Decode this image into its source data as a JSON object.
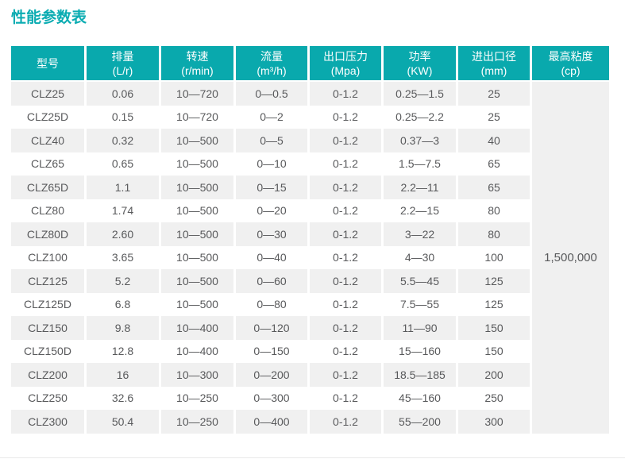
{
  "page": {
    "title": "性能参数表"
  },
  "colors": {
    "accent_teal": "#09a9ad",
    "title_teal": "#0bacb2",
    "row_stripe": "#f0f0f0",
    "merged_cell_bg": "#efefef",
    "cell_text": "#58595b",
    "header_text": "#ffffff"
  },
  "table": {
    "columns": [
      {
        "label": "型号",
        "unit": ""
      },
      {
        "label": "排量",
        "unit": "(L/r)"
      },
      {
        "label": "转速",
        "unit": "(r/min)"
      },
      {
        "label": "流量",
        "unit": "(m³/h)"
      },
      {
        "label": "出口压力",
        "unit": "(Mpa)"
      },
      {
        "label": "功率",
        "unit": "(KW)"
      },
      {
        "label": "进出口径",
        "unit": "(mm)"
      },
      {
        "label": "最高粘度",
        "unit": "(cp)"
      }
    ],
    "rows": [
      [
        "CLZ25",
        "0.06",
        "10—720",
        "0—0.5",
        "0-1.2",
        "0.25—1.5",
        "25"
      ],
      [
        "CLZ25D",
        "0.15",
        "10—720",
        "0—2",
        "0-1.2",
        "0.25—2.2",
        "25"
      ],
      [
        "CLZ40",
        "0.32",
        "10—500",
        "0—5",
        "0-1.2",
        "0.37—3",
        "40"
      ],
      [
        "CLZ65",
        "0.65",
        "10—500",
        "0—10",
        "0-1.2",
        "1.5—7.5",
        "65"
      ],
      [
        "CLZ65D",
        "1.1",
        "10—500",
        "0—15",
        "0-1.2",
        "2.2—11",
        "65"
      ],
      [
        "CLZ80",
        "1.74",
        "10—500",
        "0—20",
        "0-1.2",
        "2.2—15",
        "80"
      ],
      [
        "CLZ80D",
        "2.60",
        "10—500",
        "0—30",
        "0-1.2",
        "3—22",
        "80"
      ],
      [
        "CLZ100",
        "3.65",
        "10—500",
        "0—40",
        "0-1.2",
        "4—30",
        "100"
      ],
      [
        "CLZ125",
        "5.2",
        "10—500",
        "0—60",
        "0-1.2",
        "5.5—45",
        "125"
      ],
      [
        "CLZ125D",
        "6.8",
        "10—500",
        "0—80",
        "0-1.2",
        "7.5—55",
        "125"
      ],
      [
        "CLZ150",
        "9.8",
        "10—400",
        "0—120",
        "0-1.2",
        "11—90",
        "150"
      ],
      [
        "CLZ150D",
        "12.8",
        "10—400",
        "0—150",
        "0-1.2",
        "15—160",
        "150"
      ],
      [
        "CLZ200",
        "16",
        "10—300",
        "0—200",
        "0-1.2",
        "18.5—185",
        "200"
      ],
      [
        "CLZ250",
        "32.6",
        "10—250",
        "0—300",
        "0-1.2",
        "45—160",
        "250"
      ],
      [
        "CLZ300",
        "50.4",
        "10—250",
        "0—400",
        "0-1.2",
        "55—200",
        "300"
      ]
    ],
    "merged_viscosity": "1,500,000"
  },
  "chart_data": {
    "type": "table",
    "title": "性能参数表",
    "columns": [
      "型号",
      "排量 (L/r)",
      "转速 (r/min)",
      "流量 (m³/h)",
      "出口压力 (Mpa)",
      "功率 (KW)",
      "进出口径 (mm)",
      "最高粘度 (cp)"
    ],
    "rows": [
      [
        "CLZ25",
        "0.06",
        "10—720",
        "0—0.5",
        "0-1.2",
        "0.25—1.5",
        "25",
        "1,500,000"
      ],
      [
        "CLZ25D",
        "0.15",
        "10—720",
        "0—2",
        "0-1.2",
        "0.25—2.2",
        "25",
        "1,500,000"
      ],
      [
        "CLZ40",
        "0.32",
        "10—500",
        "0—5",
        "0-1.2",
        "0.37—3",
        "40",
        "1,500,000"
      ],
      [
        "CLZ65",
        "0.65",
        "10—500",
        "0—10",
        "0-1.2",
        "1.5—7.5",
        "65",
        "1,500,000"
      ],
      [
        "CLZ65D",
        "1.1",
        "10—500",
        "0—15",
        "0-1.2",
        "2.2—11",
        "65",
        "1,500,000"
      ],
      [
        "CLZ80",
        "1.74",
        "10—500",
        "0—20",
        "0-1.2",
        "2.2—15",
        "80",
        "1,500,000"
      ],
      [
        "CLZ80D",
        "2.60",
        "10—500",
        "0—30",
        "0-1.2",
        "3—22",
        "80",
        "1,500,000"
      ],
      [
        "CLZ100",
        "3.65",
        "10—500",
        "0—40",
        "0-1.2",
        "4—30",
        "100",
        "1,500,000"
      ],
      [
        "CLZ125",
        "5.2",
        "10—500",
        "0—60",
        "0-1.2",
        "5.5—45",
        "125",
        "1,500,000"
      ],
      [
        "CLZ125D",
        "6.8",
        "10—500",
        "0—80",
        "0-1.2",
        "7.5—55",
        "125",
        "1,500,000"
      ],
      [
        "CLZ150",
        "9.8",
        "10—400",
        "0—120",
        "0-1.2",
        "11—90",
        "150",
        "1,500,000"
      ],
      [
        "CLZ150D",
        "12.8",
        "10—400",
        "0—150",
        "0-1.2",
        "15—160",
        "150",
        "1,500,000"
      ],
      [
        "CLZ200",
        "16",
        "10—300",
        "0—200",
        "0-1.2",
        "18.5—185",
        "200",
        "1,500,000"
      ],
      [
        "CLZ250",
        "32.6",
        "10—250",
        "0—300",
        "0-1.2",
        "45—160",
        "250",
        "1,500,000"
      ],
      [
        "CLZ300",
        "50.4",
        "10—250",
        "0—400",
        "0-1.2",
        "55—200",
        "300",
        "1,500,000"
      ]
    ],
    "notes": "最高粘度 column is a single merged cell (1,500,000 cp) spanning all 15 rows"
  }
}
